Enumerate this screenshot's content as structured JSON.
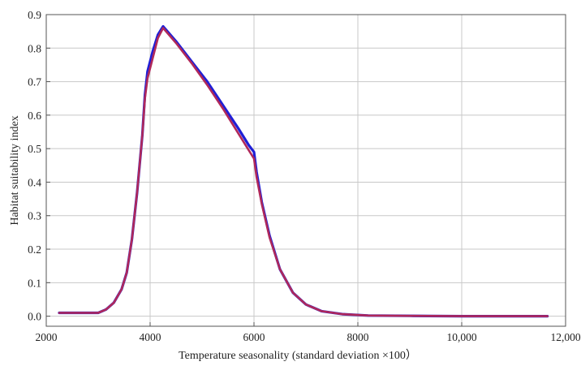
{
  "chart_data": {
    "type": "line",
    "title": "",
    "xlabel": "Temperature seasonality (standard deviation ×100）",
    "ylabel": "Habitat suitability index",
    "xlim": [
      2000,
      12000
    ],
    "ylim": [
      -0.03,
      0.9
    ],
    "grid": true,
    "x_ticks": [
      2000,
      4000,
      6000,
      8000,
      10000,
      12000
    ],
    "x_tick_labels": [
      "2000",
      "4000",
      "6000",
      "8000",
      "10,000",
      "12,000"
    ],
    "y_ticks": [
      0.0,
      0.1,
      0.2,
      0.3,
      0.4,
      0.5,
      0.6,
      0.7,
      0.8,
      0.9
    ],
    "y_tick_labels": [
      "0.0",
      "0.1",
      "0.2",
      "0.3",
      "0.4",
      "0.5",
      "0.6",
      "0.7",
      "0.8",
      "0.9"
    ],
    "colors": {
      "series_1": "#1f1fd6",
      "series_2": "#b0285a",
      "grid": "#c8c8c8",
      "frame": "#555555"
    },
    "series": [
      {
        "color": "#1f1fd6",
        "x": [
          2250,
          2600,
          3000,
          3150,
          3300,
          3450,
          3550,
          3650,
          3750,
          3850,
          3900,
          3950,
          4050,
          4150,
          4250,
          4500,
          4800,
          5100,
          5400,
          5700,
          5900,
          6000,
          6050,
          6150,
          6300,
          6500,
          6750,
          7000,
          7300,
          7700,
          8200,
          9000,
          10000,
          11000,
          11650
        ],
        "y": [
          0.01,
          0.01,
          0.01,
          0.02,
          0.04,
          0.08,
          0.13,
          0.23,
          0.37,
          0.54,
          0.66,
          0.73,
          0.79,
          0.84,
          0.865,
          0.82,
          0.76,
          0.7,
          0.63,
          0.56,
          0.51,
          0.49,
          0.43,
          0.34,
          0.24,
          0.14,
          0.07,
          0.035,
          0.015,
          0.006,
          0.002,
          0.001,
          0.0,
          0.0,
          0.0
        ]
      },
      {
        "color": "#b0285a",
        "x": [
          2250,
          2600,
          3000,
          3150,
          3300,
          3450,
          3550,
          3650,
          3750,
          3850,
          3900,
          3950,
          4050,
          4150,
          4250,
          4500,
          4800,
          5100,
          5400,
          5700,
          5900,
          6000,
          6050,
          6150,
          6300,
          6500,
          6750,
          7000,
          7300,
          7700,
          8200,
          9000,
          10000,
          11000,
          11650
        ],
        "y": [
          0.01,
          0.01,
          0.01,
          0.02,
          0.04,
          0.08,
          0.13,
          0.23,
          0.37,
          0.54,
          0.65,
          0.71,
          0.77,
          0.83,
          0.86,
          0.815,
          0.755,
          0.69,
          0.62,
          0.545,
          0.495,
          0.47,
          0.415,
          0.335,
          0.235,
          0.14,
          0.07,
          0.035,
          0.015,
          0.006,
          0.002,
          0.001,
          0.0,
          0.0,
          0.0
        ]
      }
    ]
  }
}
